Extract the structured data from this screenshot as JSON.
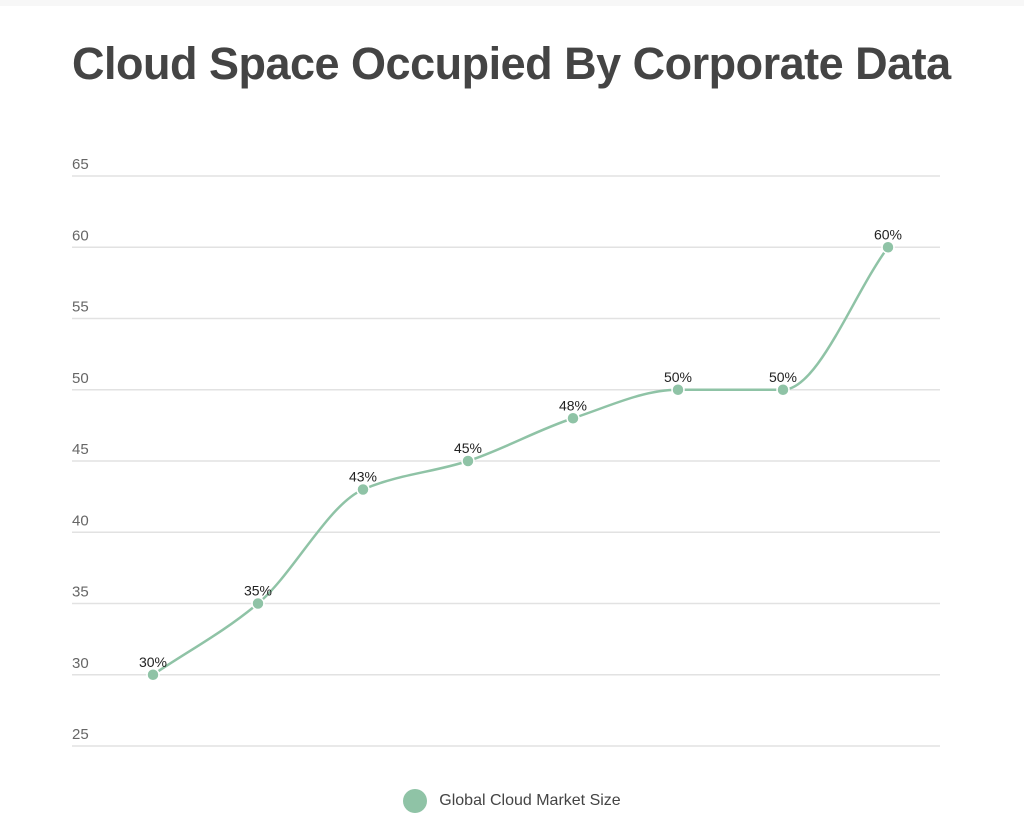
{
  "chart_data": {
    "type": "line",
    "title": "Cloud Space Occupied By Corporate Data",
    "xlabel": "",
    "ylabel": "",
    "ylim": [
      25,
      65
    ],
    "yticks": [
      25,
      30,
      35,
      40,
      45,
      50,
      55,
      60,
      65
    ],
    "grid": true,
    "legend_position": "bottom",
    "series": [
      {
        "name": "Global Cloud Market Size",
        "color": "#8fc3a6",
        "values": [
          30,
          35,
          43,
          45,
          48,
          50,
          50,
          60
        ],
        "data_labels": [
          "30%",
          "35%",
          "43%",
          "45%",
          "48%",
          "50%",
          "50%",
          "60%"
        ]
      }
    ]
  }
}
